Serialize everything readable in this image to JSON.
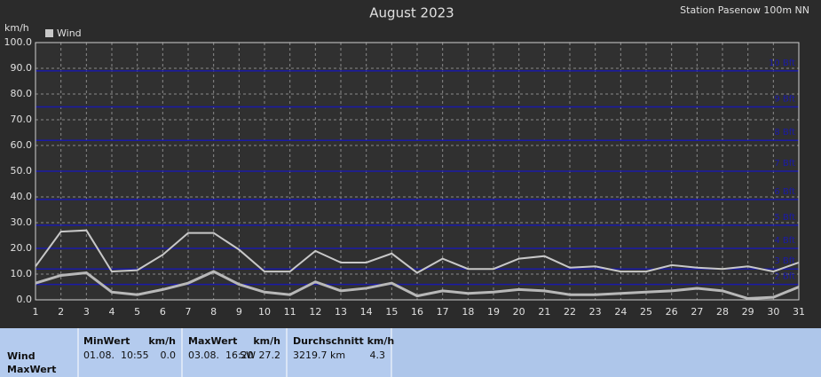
{
  "chart_data": {
    "type": "line",
    "title": "August 2023",
    "subtitle": "Station Pasenow 100m NN",
    "y_label": "km/h",
    "x": [
      1,
      2,
      3,
      4,
      5,
      6,
      7,
      8,
      9,
      10,
      11,
      12,
      13,
      14,
      15,
      16,
      17,
      18,
      19,
      20,
      21,
      22,
      23,
      24,
      25,
      26,
      27,
      28,
      29,
      30,
      31
    ],
    "xlim": [
      1,
      31
    ],
    "xticks": [
      1,
      2,
      3,
      4,
      5,
      6,
      7,
      8,
      9,
      10,
      11,
      12,
      13,
      14,
      15,
      16,
      17,
      18,
      19,
      20,
      21,
      22,
      23,
      24,
      25,
      26,
      27,
      28,
      29,
      30,
      31
    ],
    "ylim": [
      0,
      100
    ],
    "yticks": [
      {
        "value": 0,
        "label": "0.0"
      },
      {
        "value": 10,
        "label": "10.0"
      },
      {
        "value": 20,
        "label": "20.0"
      },
      {
        "value": 30,
        "label": "30.0"
      },
      {
        "value": 40,
        "label": "40.0"
      },
      {
        "value": 50,
        "label": "50.0"
      },
      {
        "value": 60,
        "label": "60.0"
      },
      {
        "value": 70,
        "label": "70.0"
      },
      {
        "value": 80,
        "label": "80.0"
      },
      {
        "value": 90,
        "label": "90.0"
      },
      {
        "value": 100,
        "label": "100.0"
      }
    ],
    "grid": true,
    "bft_lines": [
      {
        "value": 6,
        "label": "2 Bft"
      },
      {
        "value": 12,
        "label": "3 Bft"
      },
      {
        "value": 20,
        "label": "4 Bft"
      },
      {
        "value": 29,
        "label": "5 Bft"
      },
      {
        "value": 39,
        "label": "6 Bft"
      },
      {
        "value": 50,
        "label": "7 Bft"
      },
      {
        "value": 62,
        "label": "8 Bft"
      },
      {
        "value": 75,
        "label": "9 Bft"
      },
      {
        "value": 89,
        "label": "10 Bft"
      }
    ],
    "bft_color": "#1a1aa8",
    "series": [
      {
        "name": "Wind",
        "color": "#c8c8c8",
        "values": [
          13,
          26.5,
          27,
          11,
          11.5,
          17.5,
          26,
          26,
          19.5,
          11,
          11,
          19,
          14.5,
          14.5,
          18,
          10.5,
          16,
          12,
          12,
          16,
          17,
          12.5,
          13,
          11,
          11,
          13.5,
          12.5,
          12,
          13,
          11,
          14.5
        ]
      },
      {
        "color": "#b8b8b8",
        "values": [
          6.5,
          9.5,
          10.5,
          3,
          2,
          4,
          6.5,
          11,
          6,
          3,
          2,
          7,
          3.5,
          4.5,
          6.5,
          1.5,
          3.5,
          2.5,
          3,
          4,
          3.5,
          2,
          2,
          2.5,
          3,
          3.5,
          4.5,
          3.5,
          0.5,
          1,
          5
        ]
      }
    ]
  },
  "summary": {
    "row_labels": [
      "Wind",
      "MaxWert"
    ],
    "min": {
      "title": "MinWert",
      "unit": "km/h",
      "date": "01.08.  10:55",
      "value": "0.0"
    },
    "max": {
      "title": "MaxWert",
      "unit": "km/h",
      "date": "03.08.  16:20",
      "value": "SW 27.2"
    },
    "avg": {
      "title": "Durchschnitt km/h",
      "distance": "3219.7 km",
      "value": "4.3"
    }
  }
}
